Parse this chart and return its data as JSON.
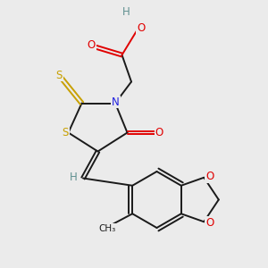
{
  "background_color": "#ebebeb",
  "atom_colors": {
    "C": "#1a1a1a",
    "H": "#5f9090",
    "O": "#e00000",
    "N": "#2020e0",
    "S": "#c8a000"
  },
  "figsize": [
    3.0,
    3.0
  ],
  "dpi": 100,
  "xlim": [
    0,
    10
  ],
  "ylim": [
    0,
    10
  ]
}
